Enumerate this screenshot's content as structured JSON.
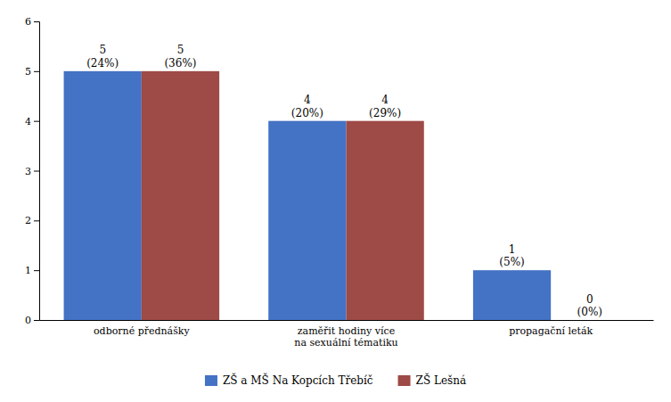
{
  "chart_data": {
    "type": "bar",
    "categories": [
      "odborné přednášky",
      "zaměřit hodiny více\nna sexuální tématiku",
      "propagační leták"
    ],
    "series": [
      {
        "name": "ZŠ a MŠ Na Kopcích Třebíč",
        "color": "#4472C4",
        "values": [
          5,
          4,
          1
        ],
        "percentages": [
          "(24%)",
          "(20%)",
          "(5%)"
        ]
      },
      {
        "name": "ZŠ Lešná",
        "color": "#9E4A46",
        "values": [
          5,
          4,
          0
        ],
        "percentages": [
          "(36%)",
          "(29%)",
          "(0%)"
        ]
      }
    ],
    "ylim": [
      0,
      6
    ],
    "yticks": [
      0,
      1,
      2,
      3,
      4,
      5,
      6
    ],
    "grid": false,
    "legend": "bottom",
    "data_labels": true
  }
}
